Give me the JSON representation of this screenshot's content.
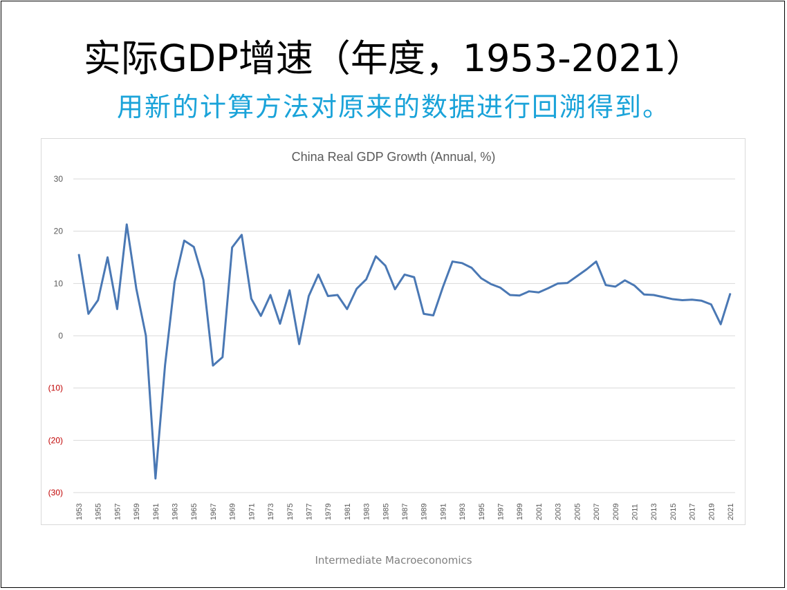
{
  "slide": {
    "title": "实际GDP增速（年度，1953-2021）",
    "subtitle": "用新的计算方法对原来的数据进行回溯得到。",
    "footer": "Intermediate Macroeconomics"
  },
  "colors": {
    "line": "#4a78b4",
    "negative_tick": "#c00000",
    "subtitle": "#1aa3d9"
  },
  "chart_data": {
    "type": "line",
    "title": "China Real GDP Growth (Annual, %)",
    "xlabel": "",
    "ylabel": "",
    "ylim": [
      -30,
      30
    ],
    "yticks": [
      30,
      20,
      10,
      0,
      -10,
      -20,
      -30
    ],
    "ytick_labels": [
      "30",
      "20",
      "10",
      "0",
      "(10)",
      "(20)",
      "(30)"
    ],
    "xtick_labels": [
      "1953",
      "1955",
      "1957",
      "1959",
      "1961",
      "1963",
      "1965",
      "1967",
      "1969",
      "1971",
      "1973",
      "1975",
      "1977",
      "1979",
      "1981",
      "1983",
      "1985",
      "1987",
      "1989",
      "1991",
      "1993",
      "1995",
      "1997",
      "1999",
      "2001",
      "2003",
      "2005",
      "2007",
      "2009",
      "2011",
      "2013",
      "2015",
      "2017",
      "2019",
      "2021"
    ],
    "grid": true,
    "legend": "none",
    "x": [
      1953,
      1954,
      1955,
      1956,
      1957,
      1958,
      1959,
      1960,
      1961,
      1962,
      1963,
      1964,
      1965,
      1966,
      1967,
      1968,
      1969,
      1970,
      1971,
      1972,
      1973,
      1974,
      1975,
      1976,
      1977,
      1978,
      1979,
      1980,
      1981,
      1982,
      1983,
      1984,
      1985,
      1986,
      1987,
      1988,
      1989,
      1990,
      1991,
      1992,
      1993,
      1994,
      1995,
      1996,
      1997,
      1998,
      1999,
      2000,
      2001,
      2002,
      2003,
      2004,
      2005,
      2006,
      2007,
      2008,
      2009,
      2010,
      2011,
      2012,
      2013,
      2014,
      2015,
      2016,
      2017,
      2018,
      2019,
      2020,
      2021
    ],
    "values": [
      15.6,
      4.2,
      6.8,
      15.0,
      5.1,
      21.3,
      9.0,
      0.0,
      -27.3,
      -5.6,
      10.3,
      18.2,
      17.0,
      10.7,
      -5.7,
      -4.1,
      16.9,
      19.3,
      7.1,
      3.8,
      7.8,
      2.3,
      8.7,
      -1.6,
      7.6,
      11.7,
      7.6,
      7.8,
      5.1,
      9.0,
      10.8,
      15.2,
      13.4,
      8.9,
      11.7,
      11.2,
      4.2,
      3.9,
      9.3,
      14.2,
      13.9,
      13.0,
      11.0,
      9.9,
      9.2,
      7.8,
      7.7,
      8.5,
      8.3,
      9.1,
      10.0,
      10.1,
      11.4,
      12.7,
      14.2,
      9.7,
      9.4,
      10.6,
      9.6,
      7.9,
      7.8,
      7.4,
      7.0,
      6.8,
      6.9,
      6.7,
      6.0,
      2.2,
      8.1
    ]
  }
}
